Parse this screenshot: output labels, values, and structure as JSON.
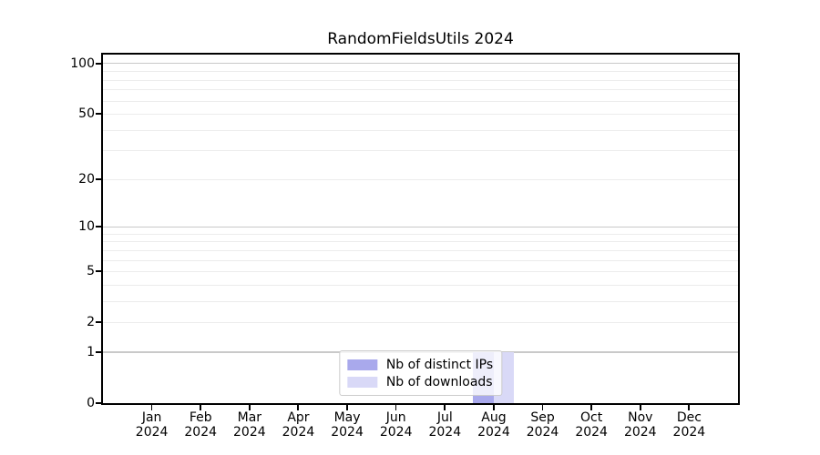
{
  "chart_data": {
    "type": "bar",
    "title": "RandomFieldsUtils 2024",
    "xlabel": "",
    "ylabel": "",
    "x_ticks": [
      {
        "month": "Jan",
        "year": "2024"
      },
      {
        "month": "Feb",
        "year": "2024"
      },
      {
        "month": "Mar",
        "year": "2024"
      },
      {
        "month": "Apr",
        "year": "2024"
      },
      {
        "month": "May",
        "year": "2024"
      },
      {
        "month": "Jun",
        "year": "2024"
      },
      {
        "month": "Jul",
        "year": "2024"
      },
      {
        "month": "Aug",
        "year": "2024"
      },
      {
        "month": "Sep",
        "year": "2024"
      },
      {
        "month": "Oct",
        "year": "2024"
      },
      {
        "month": "Nov",
        "year": "2024"
      },
      {
        "month": "Dec",
        "year": "2024"
      }
    ],
    "series": [
      {
        "name": "Nb of distinct IPs",
        "color": "#a9a9ec",
        "values": [
          0,
          0,
          0,
          0,
          0,
          0,
          0,
          1,
          0,
          0,
          0,
          0
        ]
      },
      {
        "name": "Nb of downloads",
        "color": "#d9d9f7",
        "values": [
          0,
          0,
          0,
          0,
          0,
          0,
          0,
          1,
          0,
          0,
          0,
          0
        ]
      }
    ],
    "y_scale": "log1p",
    "y_axis_ticks": [
      0,
      1,
      2,
      5,
      10,
      20,
      50,
      100
    ],
    "y_grid_major": [
      1,
      10,
      100
    ],
    "y_grid_minor": [
      2,
      3,
      4,
      5,
      6,
      7,
      8,
      9,
      20,
      30,
      40,
      50,
      60,
      70,
      80,
      90
    ],
    "ylim": [
      0,
      113
    ],
    "grid": true,
    "legend_position": "lower center"
  },
  "colors": {
    "background": "#ffffff",
    "spine": "#000000",
    "text": "#000000",
    "grid_major": "#c9c9c9",
    "grid_minor": "#ececec",
    "legend_border": "#cccccc",
    "legend_bg": "rgba(255,255,255,0.8)"
  }
}
